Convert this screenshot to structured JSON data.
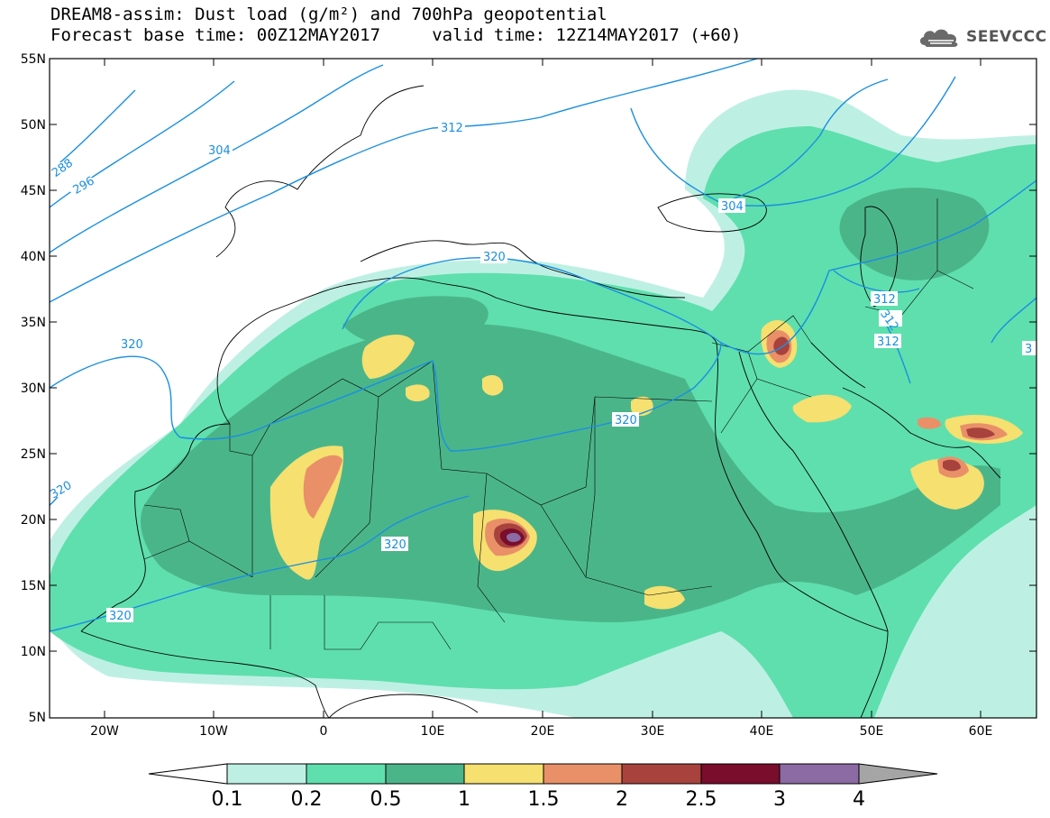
{
  "title": {
    "line1": "DREAM8-assim: Dust load (g/m²) and 700hPa geopotential",
    "line2": "Forecast base time: 00Z12MAY2017     valid time: 12Z14MAY2017 (+60)"
  },
  "logo": {
    "text": "SEEVCCC",
    "icon": "cloud-icon"
  },
  "map": {
    "lat_labels": [
      "55N",
      "50N",
      "45N",
      "40N",
      "35N",
      "30N",
      "25N",
      "20N",
      "15N",
      "10N",
      "5N"
    ],
    "lon_labels": [
      "20W",
      "10W",
      "0",
      "10E",
      "20E",
      "30E",
      "40E",
      "50E",
      "60E"
    ],
    "geopotential_labels": [
      "288",
      "296",
      "304",
      "312",
      "320",
      "320",
      "320",
      "320",
      "320",
      "320",
      "304",
      "312",
      "312",
      "312",
      "3"
    ],
    "colors": {
      "coast": "#000000",
      "contour": "#1a8fe0",
      "dust_0_1": "#bdf0e3",
      "dust_0_2": "#5fdfae",
      "dust_0_5": "#4bb58a",
      "dust_1": "#f5e070",
      "dust_1_5": "#e99068",
      "dust_2": "#a8423d",
      "dust_2_5": "#7a0d2c",
      "dust_3": "#8c6aa3",
      "dust_4": "#a5a5a5"
    }
  },
  "colorbar": {
    "ticks": [
      "0.1",
      "0.2",
      "0.5",
      "1",
      "1.5",
      "2",
      "2.5",
      "3",
      "4"
    ]
  }
}
